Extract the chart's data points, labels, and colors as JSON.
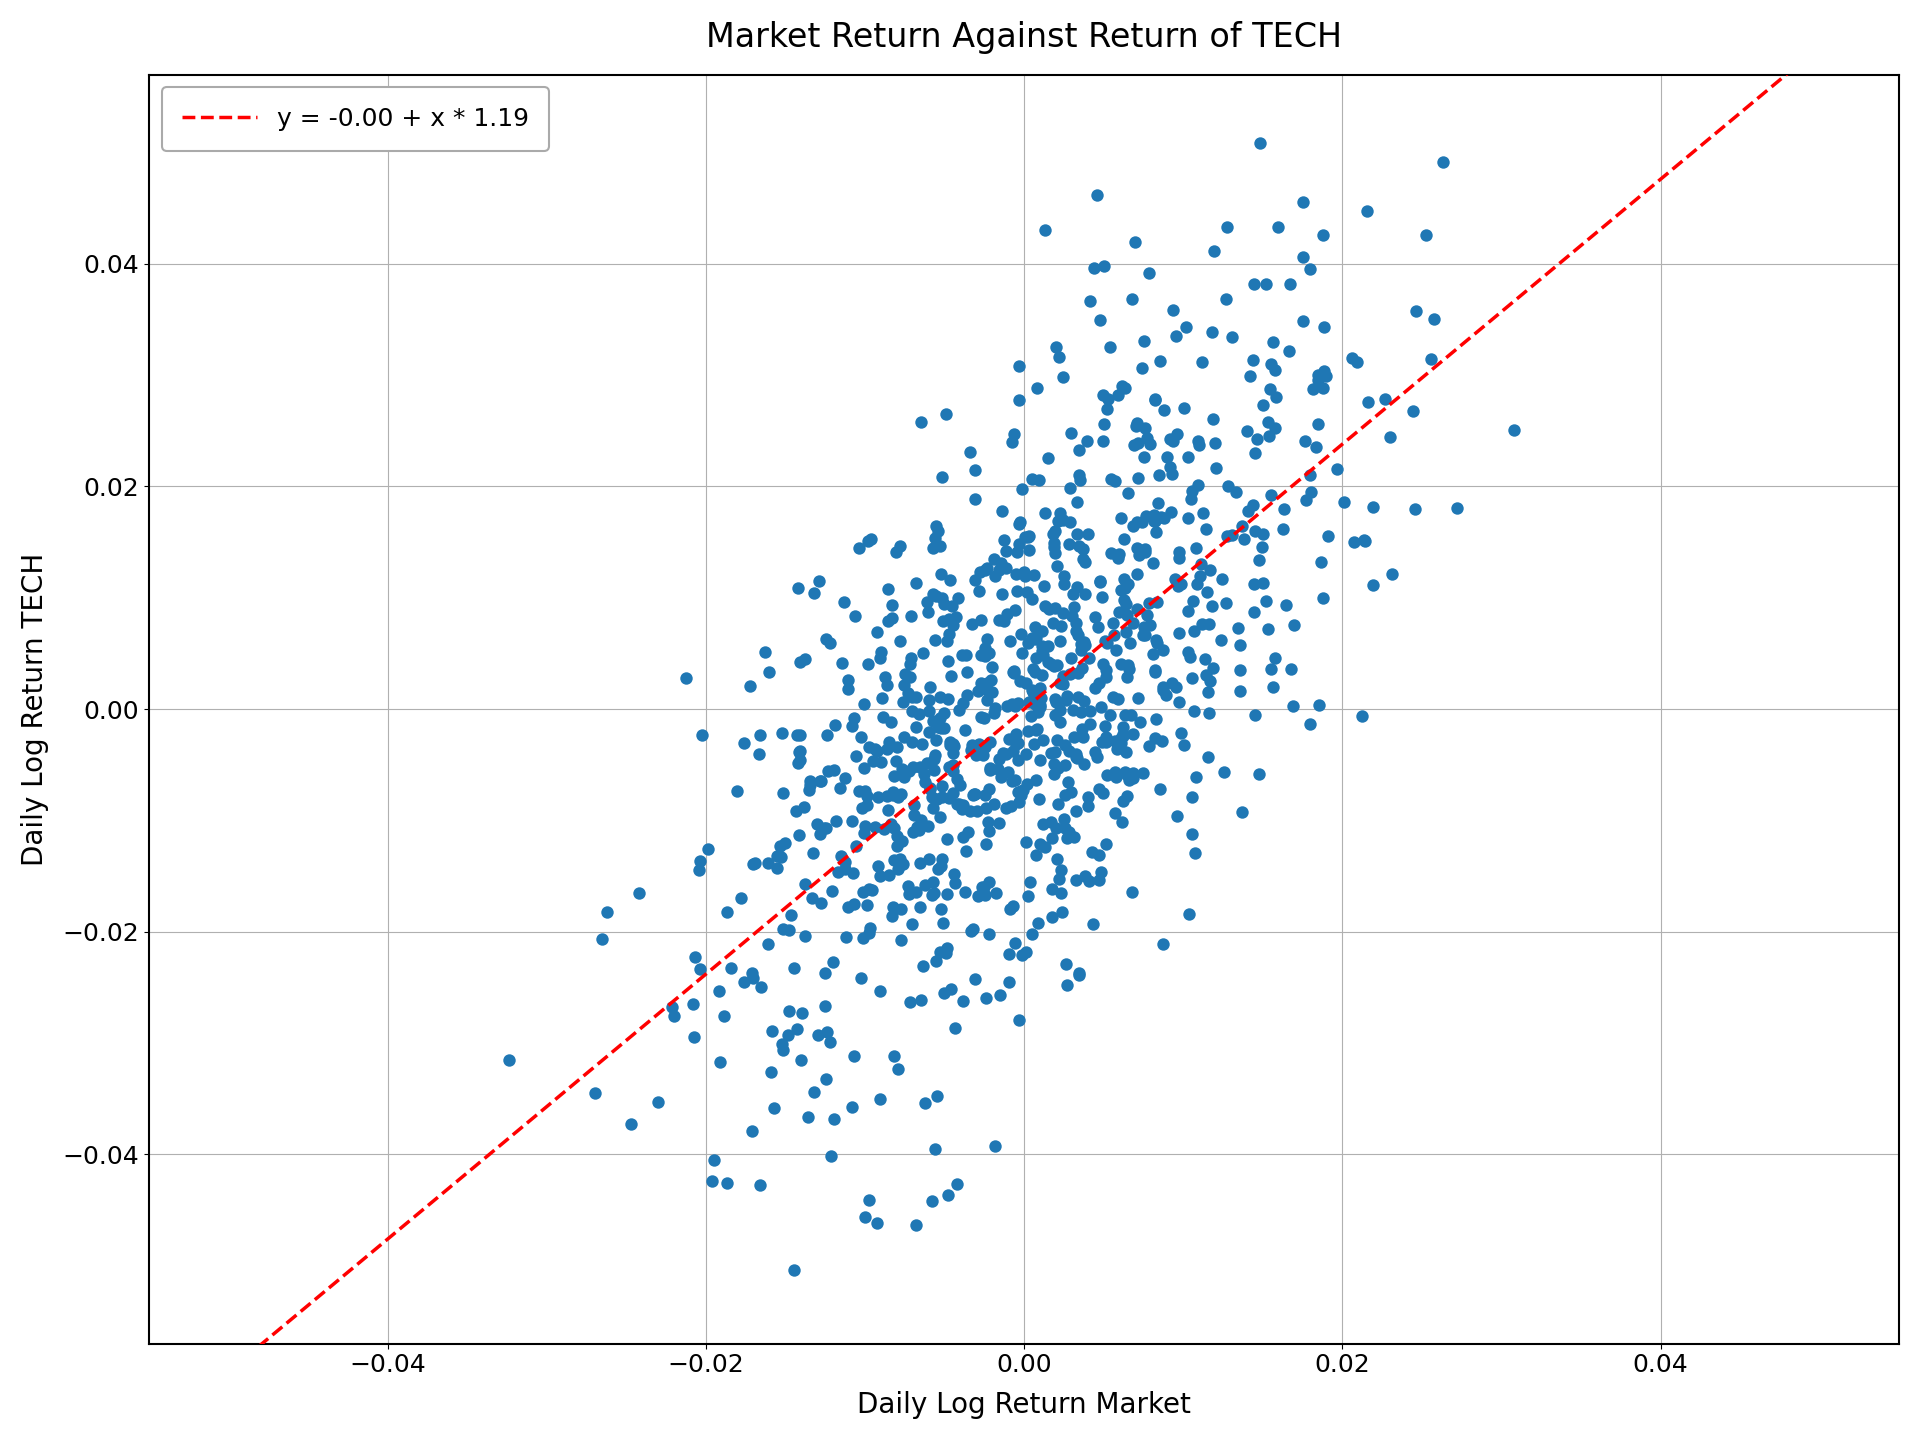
{
  "title": "Market Return Against Return of TECH",
  "xlabel": "Daily Log Return Market",
  "ylabel": "Daily Log Return TECH",
  "legend_label": "y = -0.00 + x * 1.19",
  "intercept": -0.0,
  "slope": 1.19,
  "xlim": [
    -0.055,
    0.055
  ],
  "ylim": [
    -0.057,
    0.057
  ],
  "xticks": [
    -0.04,
    -0.02,
    0.0,
    0.02,
    0.04
  ],
  "yticks": [
    -0.04,
    -0.02,
    0.0,
    0.02,
    0.04
  ],
  "scatter_color": "#1f77b4",
  "line_color": "#ff0000",
  "background_color": "#ffffff",
  "grid_color": "#b0b0b0",
  "title_fontsize": 24,
  "label_fontsize": 20,
  "tick_fontsize": 18,
  "legend_fontsize": 18,
  "marker_size": 80,
  "n_points": 1000,
  "random_seed": 42,
  "market_std": 0.01,
  "noise_std": 0.013
}
